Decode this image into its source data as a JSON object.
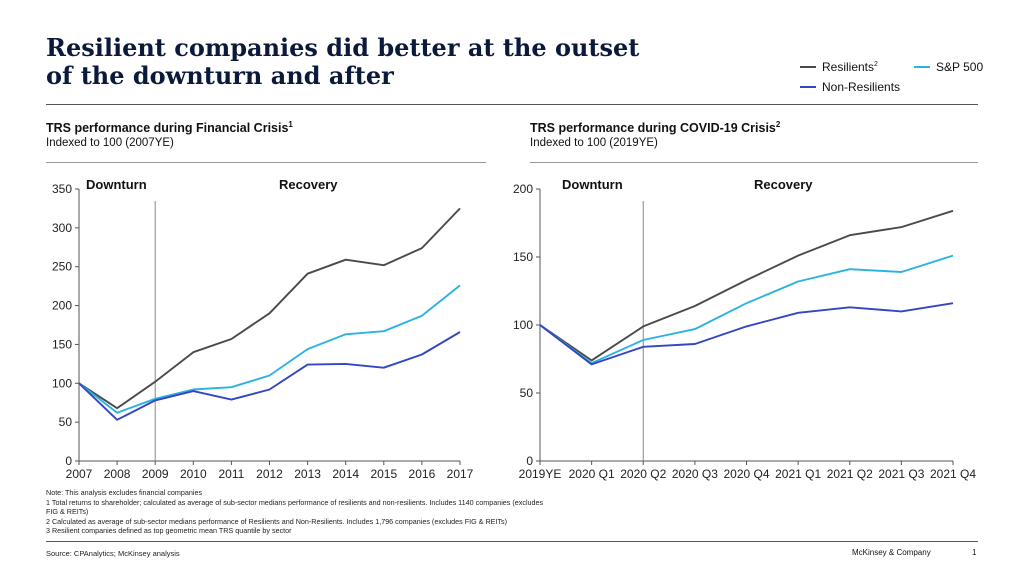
{
  "header": {
    "title_line1": "Resilient companies did better at the outset",
    "title_line2": "of the downturn and after"
  },
  "legend": {
    "resilients": {
      "label": "Resilients",
      "sup": "2",
      "color": "#4a4a4a"
    },
    "sp500": {
      "label": "S&P 500",
      "color": "#2bb3e0"
    },
    "non_resilients": {
      "label": "Non-Resilients",
      "color": "#3346c4"
    }
  },
  "left_panel": {
    "title": "TRS performance during Financial Crisis",
    "title_sup": "1",
    "subtitle": "Indexed to 100 (2007YE)",
    "phase_labels": {
      "downturn": "Downturn",
      "recovery": "Recovery"
    }
  },
  "right_panel": {
    "title": "TRS performance during COVID-19 Crisis",
    "title_sup": "2",
    "subtitle": "Indexed to 100 (2019YE)",
    "phase_labels": {
      "downturn": "Downturn",
      "recovery": "Recovery"
    }
  },
  "chart_data": [
    {
      "type": "line",
      "title": "TRS performance during Financial Crisis",
      "subtitle": "Indexed to 100 (2007YE)",
      "x": [
        "2007",
        "2008",
        "2009",
        "2010",
        "2011",
        "2012",
        "2013",
        "2014",
        "2015",
        "2016",
        "2017"
      ],
      "ylim": [
        0,
        350
      ],
      "yticks": [
        0,
        50,
        100,
        150,
        200,
        250,
        300,
        350
      ],
      "divider_after": "2009",
      "series": [
        {
          "name": "Resilients",
          "color": "#4a4a4a",
          "values": [
            100,
            68,
            102,
            140,
            157,
            190,
            241,
            259,
            252,
            274,
            325
          ]
        },
        {
          "name": "S&P 500",
          "color": "#2bb3e0",
          "values": [
            100,
            62,
            80,
            92,
            95,
            110,
            144,
            163,
            167,
            187,
            226
          ]
        },
        {
          "name": "Non-Resilients",
          "color": "#3346c4",
          "values": [
            100,
            53,
            78,
            90,
            79,
            92,
            124,
            125,
            120,
            137,
            166
          ]
        }
      ],
      "legend": "top-right",
      "grid": false
    },
    {
      "type": "line",
      "title": "TRS performance during COVID-19 Crisis",
      "subtitle": "Indexed to 100 (2019YE)",
      "x": [
        "2019YE",
        "2020 Q1",
        "2020 Q2",
        "2020 Q3",
        "2020 Q4",
        "2021 Q1",
        "2021 Q2",
        "2021 Q3",
        "2021 Q4"
      ],
      "ylim": [
        0,
        200
      ],
      "yticks": [
        0,
        50,
        100,
        150,
        200
      ],
      "divider_after": "2020 Q2",
      "series": [
        {
          "name": "Resilients",
          "color": "#4a4a4a",
          "values": [
            100,
            74,
            99,
            114,
            133,
            151,
            166,
            172,
            184
          ]
        },
        {
          "name": "S&P 500",
          "color": "#2bb3e0",
          "values": [
            100,
            72,
            89,
            97,
            116,
            132,
            141,
            139,
            151
          ]
        },
        {
          "name": "Non-Resilients",
          "color": "#3346c4",
          "values": [
            100,
            71,
            84,
            86,
            99,
            109,
            113,
            110,
            116
          ]
        }
      ],
      "legend": "top-right",
      "grid": false
    }
  ],
  "footnotes": [
    "Note: This analysis excludes financial companies",
    "1 Total returns to shareholder; calculated as average of sub-sector medians performance of resilients and non-resilients. Includes 1140 companies (excludes",
    "FIG & REITs)",
    "2 Calculated as average of sub-sector medians performance of Resilients and Non-Resilients. Includes 1,796 companies (excludes FIG & REITs)",
    "3 Resilient companies defined as top geometric mean TRS quantile by sector"
  ],
  "footer": {
    "source": "Source: CPAnalytics; McKinsey analysis",
    "brand": "McKinsey & Company",
    "page": "1"
  }
}
